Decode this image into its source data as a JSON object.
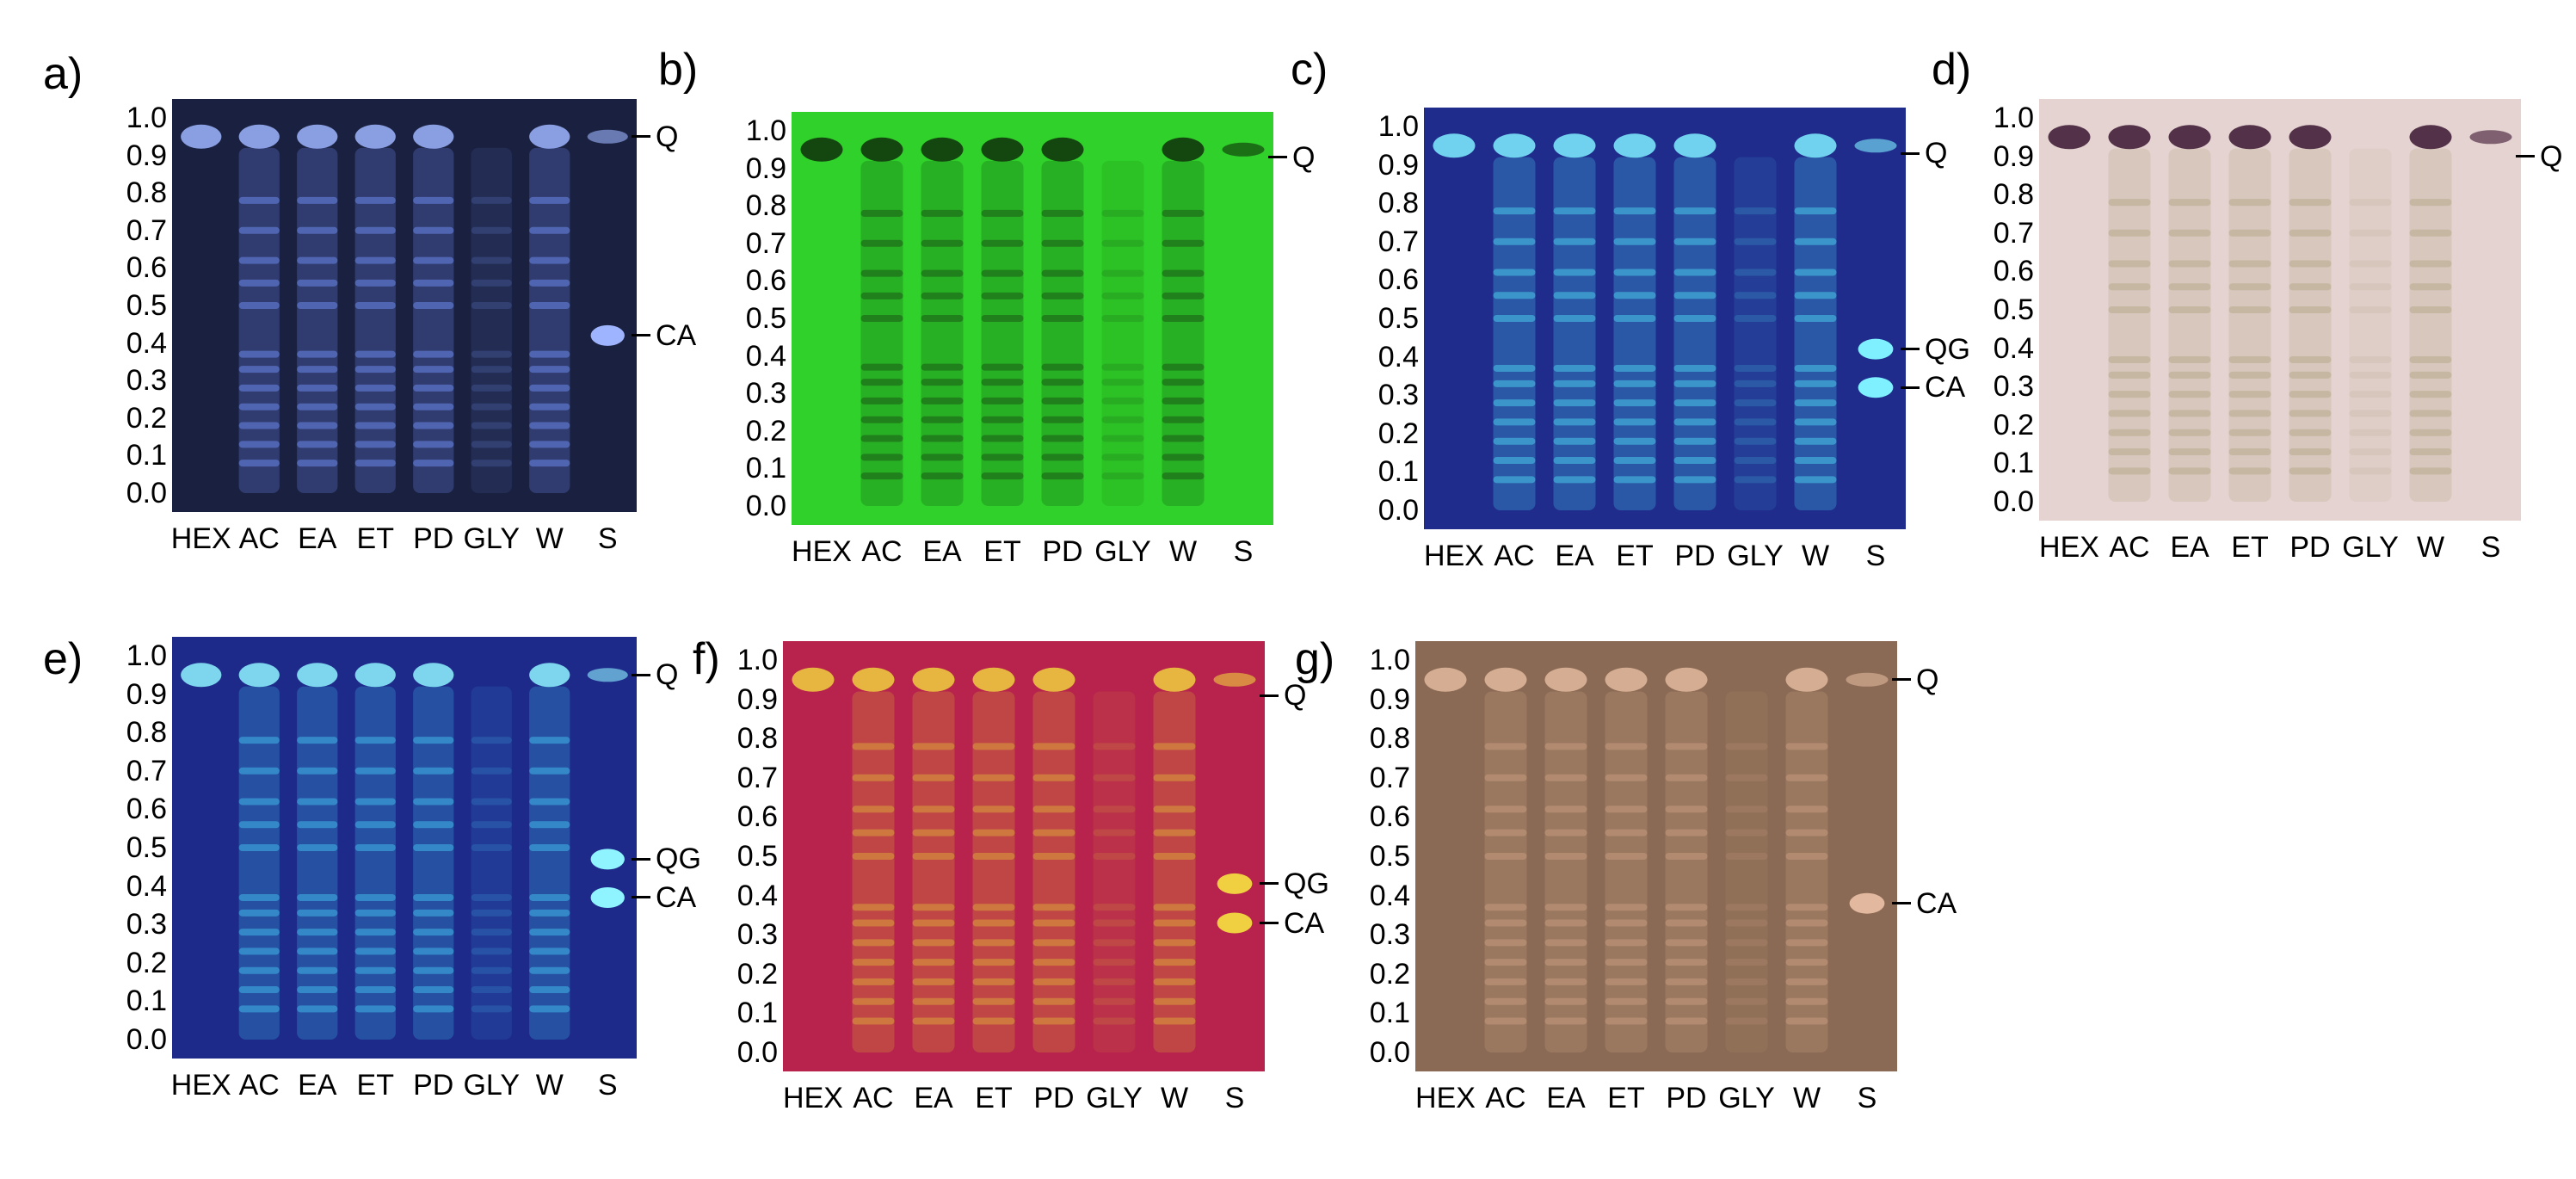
{
  "rf_ticks": [
    "1.0",
    "0.9",
    "0.8",
    "0.7",
    "0.6",
    "0.5",
    "0.4",
    "0.3",
    "0.2",
    "0.1",
    "0.0"
  ],
  "lanes": [
    "HEX",
    "AC",
    "EA",
    "ET",
    "PD",
    "GLY",
    "W",
    "S"
  ],
  "panels": [
    {
      "letter": "a)",
      "plate": {
        "background": "#1a2140",
        "band_color": "#6a86e8",
        "strong_color": "#9fb4ff"
      },
      "markers": [
        {
          "label": "Q",
          "rf": 0.95
        },
        {
          "label": "CA",
          "rf": 0.42
        }
      ]
    },
    {
      "letter": "b)",
      "plate": {
        "background": "#2fd12a",
        "band_color": "#1a5a14",
        "strong_color": "#0f2e0a"
      },
      "markers": [
        {
          "label": "Q",
          "rf": 0.93
        }
      ]
    },
    {
      "letter": "c)",
      "plate": {
        "background": "#1f2c8c",
        "band_color": "#49c8e8",
        "strong_color": "#7ff0ff"
      },
      "markers": [
        {
          "label": "Q",
          "rf": 0.93
        },
        {
          "label": "QG",
          "rf": 0.42
        },
        {
          "label": "CA",
          "rf": 0.32
        }
      ]
    },
    {
      "letter": "d)",
      "plate": {
        "background": "#e4d3d0",
        "band_color": "#b7a98a",
        "strong_color": "#3a1430"
      },
      "markers": [
        {
          "label": "Q",
          "rf": 0.9
        }
      ]
    },
    {
      "letter": "e)",
      "plate": {
        "background": "#1d2a8a",
        "band_color": "#3fb6e6",
        "strong_color": "#8ff4ff"
      },
      "markers": [
        {
          "label": "Q",
          "rf": 0.95
        },
        {
          "label": "QG",
          "rf": 0.47
        },
        {
          "label": "CA",
          "rf": 0.37
        }
      ]
    },
    {
      "letter": "f)",
      "plate": {
        "background": "#b7234c",
        "band_color": "#d9a03a",
        "strong_color": "#f0d040"
      },
      "markers": [
        {
          "label": "Q",
          "rf": 0.91
        },
        {
          "label": "QG",
          "rf": 0.43
        },
        {
          "label": "CA",
          "rf": 0.33
        }
      ]
    },
    {
      "letter": "g)",
      "plate": {
        "background": "#8a6a54",
        "band_color": "#c49a7e",
        "strong_color": "#e2b89e"
      },
      "markers": [
        {
          "label": "Q",
          "rf": 0.95
        },
        {
          "label": "CA",
          "rf": 0.38
        }
      ]
    }
  ]
}
